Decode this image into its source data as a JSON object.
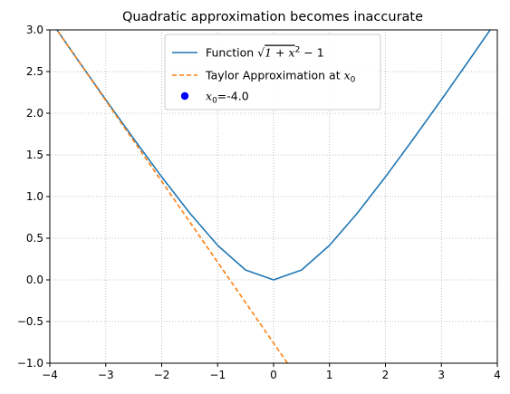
{
  "chart_data": {
    "type": "line",
    "title": "Quadratic approximation becomes inaccurate",
    "xlabel": "",
    "ylabel": "",
    "xlim": [
      -4,
      4
    ],
    "ylim": [
      -1,
      3
    ],
    "x_ticks": [
      -4,
      -3,
      -2,
      -1,
      0,
      1,
      2,
      3,
      4
    ],
    "x_tick_labels": [
      "−4",
      "−3",
      "−2",
      "−1",
      "0",
      "1",
      "2",
      "3",
      "4"
    ],
    "y_ticks": [
      -1.0,
      -0.5,
      0.0,
      0.5,
      1.0,
      1.5,
      2.0,
      2.5,
      3.0
    ],
    "y_tick_labels": [
      "−1.0",
      "−0.5",
      "0.0",
      "0.5",
      "1.0",
      "1.5",
      "2.0",
      "2.5",
      "3.0"
    ],
    "grid": true,
    "legend_position": "top-center",
    "series": [
      {
        "name": "Function √(1+x²) − 1",
        "legend_prefix": "Function ",
        "kind": "line",
        "style": "solid",
        "color": "#1f77b4",
        "x": [
          -4.0,
          -3.5,
          -3.0,
          -2.5,
          -2.0,
          -1.5,
          -1.0,
          -0.5,
          0.0,
          0.5,
          1.0,
          1.5,
          2.0,
          2.5,
          3.0,
          3.5,
          4.0
        ],
        "y": [
          3.123,
          2.64,
          2.162,
          1.693,
          1.236,
          0.803,
          0.414,
          0.118,
          0.0,
          0.118,
          0.414,
          0.803,
          1.236,
          1.693,
          2.162,
          2.64,
          3.123
        ]
      },
      {
        "name": "Taylor Approximation at x₀",
        "legend_prefix": "Taylor Approximation at ",
        "kind": "line",
        "style": "dashed",
        "color": "#ff7f0e",
        "x": [
          -4.0,
          -3.0,
          -2.0,
          -1.0,
          0.0,
          0.4
        ],
        "y": [
          3.123,
          2.152,
          1.182,
          0.212,
          -0.758,
          -1.146
        ]
      },
      {
        "name": "x₀=-4.0",
        "legend_suffix": "=-4.0",
        "kind": "scatter",
        "color": "#0000ff",
        "x": [
          -4.0
        ],
        "y": [
          3.123
        ]
      }
    ]
  }
}
